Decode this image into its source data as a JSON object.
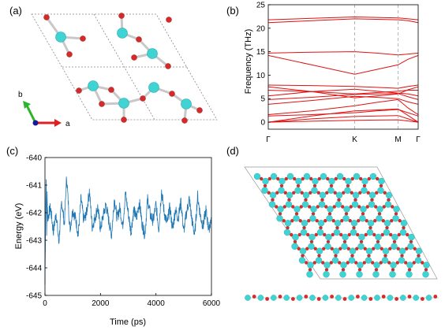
{
  "panels": {
    "a": {
      "label": "(a)",
      "axis_b": "b",
      "axis_a": "a"
    },
    "b": {
      "label": "(b)"
    },
    "c": {
      "label": "(c)"
    },
    "d": {
      "label": "(d)"
    }
  },
  "colors": {
    "atom_cyan": "#3fd3d3",
    "atom_red": "#d42a2a",
    "band_red": "#e01010",
    "energy_blue": "#1f77b4",
    "axis_green": "#2bb52b",
    "axis_red": "#e02020",
    "axis_origin": "#1a1a99"
  },
  "chart_data": [
    {
      "id": "band-structure",
      "type": "line",
      "ylabel": "Frequency (THz)",
      "ylim": [
        -1.5,
        25
      ],
      "yticks": [
        0,
        5,
        10,
        15,
        20,
        25
      ],
      "high_symmetry": [
        "Γ",
        "K",
        "M",
        "Γ"
      ],
      "x_positions": [
        0,
        0.577,
        0.866,
        1.0
      ],
      "grid": false,
      "x": [
        0,
        0.2885,
        0.577,
        0.7215,
        0.866,
        0.933,
        1.0
      ],
      "series": [
        {
          "values": [
            0,
            0.2,
            0.4,
            0.45,
            0.5,
            0.25,
            0
          ]
        },
        {
          "values": [
            0,
            0.7,
            1.2,
            1.3,
            1.4,
            0.7,
            0
          ]
        },
        {
          "values": [
            0,
            1.3,
            2.4,
            2.6,
            2.8,
            1.4,
            0
          ]
        },
        {
          "values": [
            1.3,
            1.6,
            2.0,
            2.4,
            2.7,
            2.0,
            1.3
          ]
        },
        {
          "values": [
            1.6,
            2.4,
            3.5,
            4.2,
            4.8,
            3.0,
            1.6
          ]
        },
        {
          "values": [
            3.8,
            4.6,
            5.5,
            5.3,
            5.0,
            4.3,
            3.8
          ]
        },
        {
          "values": [
            4.8,
            5.3,
            5.9,
            6.0,
            6.1,
            5.4,
            4.8
          ]
        },
        {
          "values": [
            5.6,
            6.5,
            7.0,
            6.6,
            6.2,
            6.0,
            5.6
          ]
        },
        {
          "values": [
            6.8,
            6.5,
            6.0,
            6.3,
            6.6,
            6.8,
            6.8
          ]
        },
        {
          "values": [
            7.5,
            6.5,
            5.2,
            5.6,
            6.0,
            6.9,
            7.5
          ]
        },
        {
          "values": [
            7.9,
            7.8,
            7.6,
            7.4,
            7.2,
            7.6,
            7.9
          ]
        },
        {
          "values": [
            14.2,
            12.2,
            10.2,
            11.2,
            12.2,
            13.4,
            14.2
          ]
        },
        {
          "values": [
            14.7,
            14.9,
            15.0,
            14.7,
            14.3,
            14.5,
            14.7
          ]
        },
        {
          "values": [
            21.2,
            21.6,
            22.0,
            21.9,
            21.8,
            21.6,
            21.2
          ]
        },
        {
          "values": [
            21.8,
            22.1,
            22.4,
            22.3,
            22.2,
            22.0,
            21.8
          ]
        }
      ]
    },
    {
      "id": "energy-time",
      "type": "line",
      "xlabel": "Time (ps)",
      "ylabel": "Energy (eV)",
      "xlim": [
        0,
        6000
      ],
      "ylim": [
        -645,
        -640
      ],
      "xticks": [
        0,
        2000,
        4000,
        6000
      ],
      "yticks": [
        -645,
        -644,
        -643,
        -642,
        -641,
        -640
      ],
      "grid": false,
      "x": [
        0,
        20,
        40,
        60,
        80,
        100,
        200,
        300,
        400,
        500,
        600,
        700,
        780,
        900,
        1000,
        1100,
        1200,
        1300,
        1400,
        1500,
        1600,
        1700,
        1800,
        1900,
        2000,
        2100,
        2200,
        2300,
        2400,
        2500,
        2600,
        2700,
        2800,
        2900,
        3000,
        3100,
        3200,
        3300,
        3400,
        3500,
        3600,
        3700,
        3800,
        3900,
        4000,
        4100,
        4200,
        4300,
        4400,
        4500,
        4600,
        4700,
        4800,
        4900,
        5000,
        5100,
        5200,
        5300,
        5400,
        5500,
        5600,
        5700,
        5800,
        5900,
        6000
      ],
      "series": [
        {
          "values": [
            -644.6,
            -642.4,
            -640.6,
            -642.8,
            -641.3,
            -642.2,
            -641.8,
            -642.7,
            -642.0,
            -643.1,
            -641.6,
            -642.4,
            -640.7,
            -642.6,
            -641.9,
            -642.2,
            -642.8,
            -641.5,
            -642.3,
            -642.0,
            -641.2,
            -642.5,
            -642.2,
            -641.8,
            -642.6,
            -642.1,
            -641.7,
            -642.3,
            -642.8,
            -641.5,
            -642.2,
            -641.8,
            -642.5,
            -641.3,
            -642.0,
            -642.7,
            -641.9,
            -642.2,
            -641.6,
            -642.4,
            -642.8,
            -641.5,
            -642.1,
            -642.3,
            -641.7,
            -642.6,
            -641.2,
            -642.0,
            -642.4,
            -641.8,
            -642.6,
            -641.9,
            -642.2,
            -641.6,
            -642.7,
            -642.0,
            -641.5,
            -642.3,
            -642.8,
            -641.4,
            -642.1,
            -642.5,
            -641.9,
            -642.6,
            -642.2
          ]
        }
      ]
    }
  ]
}
